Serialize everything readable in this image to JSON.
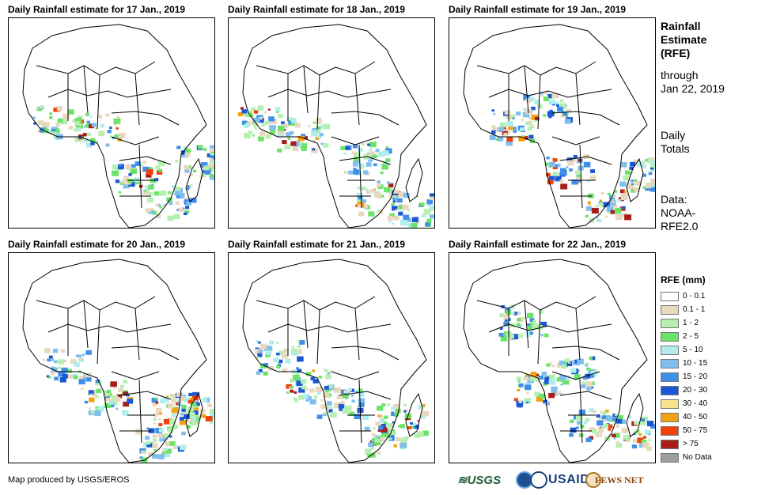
{
  "panels": [
    {
      "title": "Daily Rainfall estimate for 17 Jan., 2019"
    },
    {
      "title": "Daily Rainfall estimate for 18 Jan., 2019"
    },
    {
      "title": "Daily Rainfall estimate for 19 Jan., 2019"
    },
    {
      "title": "Daily Rainfall estimate for 20 Jan., 2019"
    },
    {
      "title": "Daily Rainfall estimate for 21 Jan., 2019"
    },
    {
      "title": "Daily Rainfall estimate for 22 Jan., 2019"
    }
  ],
  "side": {
    "title_line1": "Rainfall",
    "title_line2": "Estimate",
    "title_line3": "(RFE)",
    "through": "through",
    "date": "Jan 22, 2019",
    "totals_line1": "Daily",
    "totals_line2": "Totals",
    "data_line1": "Data:",
    "data_line2": "NOAA-",
    "data_line3": "RFE2.0"
  },
  "legend": {
    "title": "RFE (mm)",
    "items": [
      {
        "label": "0 - 0.1",
        "color": "#ffffff"
      },
      {
        "label": "0.1 - 1",
        "color": "#e8d8bd"
      },
      {
        "label": "1 - 2",
        "color": "#b5f0b0"
      },
      {
        "label": "2 - 5",
        "color": "#6de26a"
      },
      {
        "label": "5 - 10",
        "color": "#b0eeee"
      },
      {
        "label": "10 - 15",
        "color": "#7fbfef"
      },
      {
        "label": "15 - 20",
        "color": "#3f8fe8"
      },
      {
        "label": "20 - 30",
        "color": "#1a57d6"
      },
      {
        "label": "30 - 40",
        "color": "#f7e48a"
      },
      {
        "label": "40 - 50",
        "color": "#f3a20f"
      },
      {
        "label": "50 - 75",
        "color": "#f0430a"
      },
      {
        "label": "> 75",
        "color": "#a81d16"
      },
      {
        "label": "No Data",
        "color": "#9e9e9e"
      }
    ]
  },
  "credit": "Map produced by USGS/EROS",
  "logos": {
    "usgs": "≋USGS",
    "usaid": "USAID",
    "fews": "FEWS NET"
  }
}
